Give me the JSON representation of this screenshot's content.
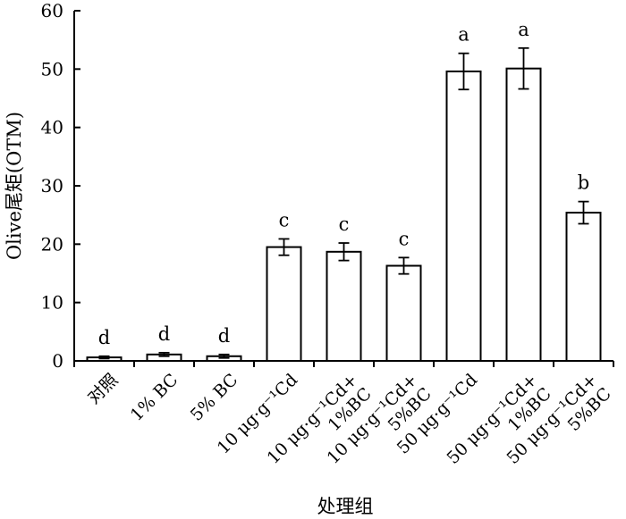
{
  "chart_data": {
    "type": "bar",
    "xlabel": "处理组",
    "ylabel": "Olive尾矩(OTM)",
    "ylim": [
      0,
      60
    ],
    "yticks": [
      "0",
      "10",
      "20",
      "30",
      "40",
      "50",
      "60"
    ],
    "grid": false,
    "categories": [
      {
        "lines": [
          "对照"
        ]
      },
      {
        "lines": [
          "1% BC"
        ]
      },
      {
        "lines": [
          "5% BC"
        ]
      },
      {
        "lines": [
          "10 μg·g⁻¹Cd"
        ]
      },
      {
        "lines": [
          "10 μg·g⁻¹Cd+",
          "1%BC"
        ]
      },
      {
        "lines": [
          "10 μg·g⁻¹Cd+",
          "5%BC"
        ]
      },
      {
        "lines": [
          "50 μg·g⁻¹Cd"
        ]
      },
      {
        "lines": [
          "50 μg·g⁻¹Cd+",
          "1%BC"
        ]
      },
      {
        "lines": [
          "50 μg·g⁻¹Cd+",
          "5%BC"
        ]
      }
    ],
    "values": [
      0.6,
      1.1,
      0.8,
      19.5,
      18.7,
      16.3,
      49.6,
      50.1,
      25.4
    ],
    "errors": [
      0.2,
      0.3,
      0.3,
      1.4,
      1.5,
      1.4,
      3.1,
      3.5,
      1.9
    ],
    "significance": [
      "d",
      "d",
      "d",
      "c",
      "c",
      "c",
      "a",
      "a",
      "b"
    ],
    "bar_fill": "#ffffff",
    "bar_stroke": "#000000"
  }
}
